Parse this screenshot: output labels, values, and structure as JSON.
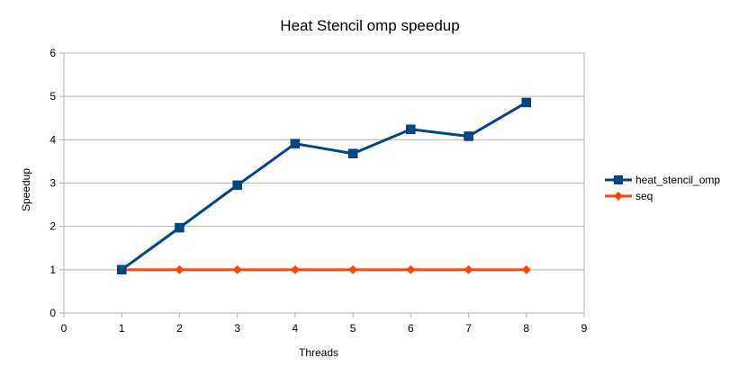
{
  "chart_data": {
    "type": "line",
    "title": "Heat Stencil omp speedup",
    "xlabel": "Threads",
    "ylabel": "Speedup",
    "xlim": [
      0,
      9
    ],
    "ylim": [
      0,
      6
    ],
    "xticks": [
      "0",
      "1",
      "2",
      "3",
      "4",
      "5",
      "6",
      "7",
      "8",
      "9"
    ],
    "yticks": [
      "0",
      "1",
      "2",
      "3",
      "4",
      "5",
      "6"
    ],
    "grid": "horizontal",
    "legend_position": "right",
    "series": [
      {
        "name": "heat_stencil_omp",
        "color": "#004586",
        "marker": "square",
        "x": [
          1,
          2,
          3,
          4,
          5,
          6,
          7,
          8
        ],
        "y": [
          1.0,
          1.97,
          2.95,
          3.91,
          3.68,
          4.24,
          4.08,
          4.86
        ]
      },
      {
        "name": "seq",
        "color": "#ff420e",
        "marker": "diamond",
        "x": [
          1,
          2,
          3,
          4,
          5,
          6,
          7,
          8
        ],
        "y": [
          1,
          1,
          1,
          1,
          1,
          1,
          1,
          1
        ]
      }
    ]
  }
}
